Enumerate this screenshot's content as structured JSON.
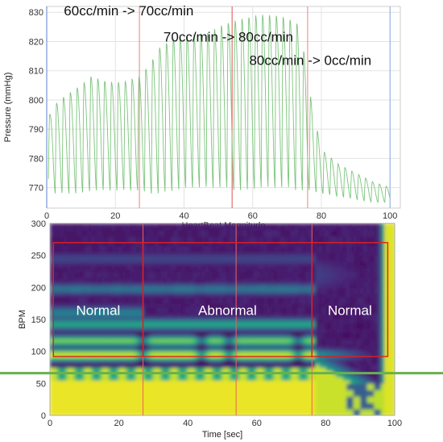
{
  "chart_data": [
    {
      "type": "line",
      "xlabel": "HeartBeat Magnitude",
      "ylabel": "Pressure (mmHg)",
      "xlim": [
        0,
        103
      ],
      "ylim": [
        763,
        832
      ],
      "xticks": [
        0,
        20,
        40,
        60,
        80,
        100
      ],
      "yticks": [
        770,
        780,
        790,
        800,
        810,
        820,
        830
      ],
      "grid": true,
      "series_color": "#7cc47c",
      "envelope": {
        "x": [
          0.5,
          2,
          5,
          10,
          13,
          18,
          22,
          27,
          30,
          33,
          37,
          42,
          47,
          52,
          55,
          58,
          62,
          66,
          70,
          73,
          75,
          77,
          80,
          85,
          90,
          95,
          100
        ],
        "peak": [
          794,
          798,
          801,
          805,
          808,
          806,
          806,
          808,
          812,
          818,
          821,
          822,
          823,
          826,
          827,
          828,
          829,
          829,
          828,
          826,
          816,
          800,
          783,
          778,
          775,
          772,
          770
        ],
        "trough": [
          773,
          768,
          768,
          768,
          769,
          769,
          769,
          769,
          768,
          768,
          769,
          770,
          770,
          770,
          769,
          769,
          770,
          770,
          770,
          769,
          769,
          769,
          768,
          767,
          766,
          765,
          765
        ]
      },
      "beat_period": 2.0,
      "vlines": [
        {
          "x": 0,
          "color": "#5b7fd6"
        },
        {
          "x": 27,
          "color": "#f08080"
        },
        {
          "x": 54,
          "color": "#e05050"
        },
        {
          "x": 76,
          "color": "#f08080"
        },
        {
          "x": 100,
          "color": "#8aa8e0"
        }
      ],
      "annotations": [
        {
          "text": "60cc/min -> 70cc/min",
          "x": 5,
          "y": 829
        },
        {
          "text": "70cc/min -> 80cc/min",
          "x": 34,
          "y": 820
        },
        {
          "text": "80cc/min -> 0cc/min",
          "x": 59,
          "y": 812
        }
      ]
    },
    {
      "type": "heatmap",
      "xlabel": "Time [sec]",
      "ylabel": "BPM",
      "xlim": [
        0,
        100
      ],
      "ylim": [
        0,
        300
      ],
      "xticks": [
        0,
        20,
        40,
        60,
        80,
        100
      ],
      "yticks": [
        0,
        50,
        100,
        150,
        200,
        250,
        300
      ],
      "colormap": "viridis",
      "vlines": [
        27,
        54,
        76
      ],
      "vline_color": "#f06060",
      "hline_bpm": 66,
      "hline_color": "#6ab04c",
      "boxes": [
        {
          "x0": 1,
          "x1": 27,
          "y0": 92,
          "y1": 270,
          "label": "Normal"
        },
        {
          "x0": 27,
          "x1": 76,
          "y0": 92,
          "y1": 270,
          "label": "Abnormal"
        },
        {
          "x0": 76,
          "x1": 98,
          "y0": 92,
          "y1": 270,
          "label": "Normal"
        }
      ],
      "box_color": "#e02020"
    }
  ]
}
